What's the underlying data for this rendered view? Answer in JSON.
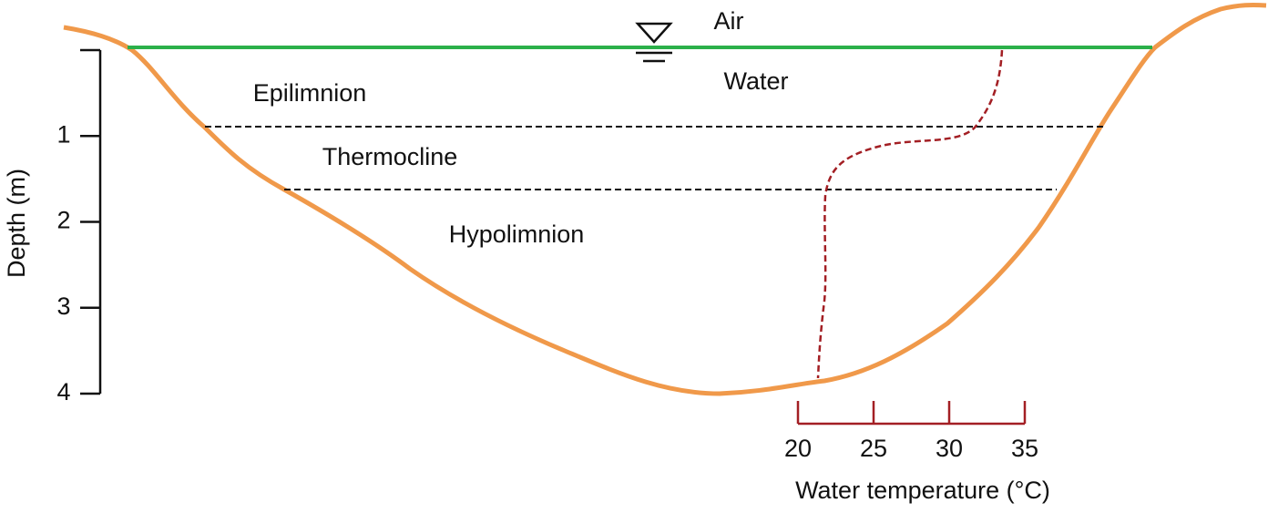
{
  "labels": {
    "air": "Air",
    "water": "Water",
    "epilimnion": "Epilimnion",
    "thermocline": "Thermocline",
    "hypolimnion": "Hypolimnion"
  },
  "depth_axis": {
    "title": "Depth (m)",
    "ticks": [
      1,
      2,
      3,
      4
    ]
  },
  "temperature_axis": {
    "title": "Water temperature (°C)",
    "ticks": [
      20,
      25,
      30,
      35
    ]
  }
}
